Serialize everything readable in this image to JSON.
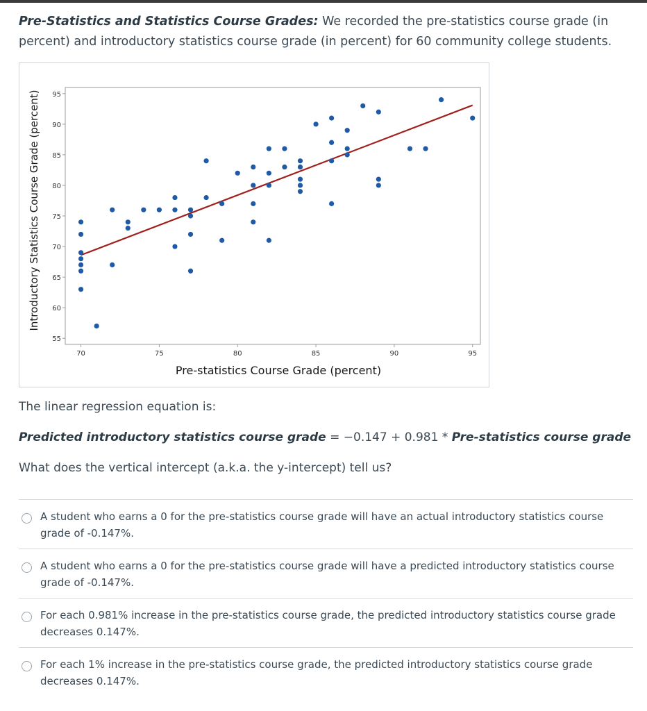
{
  "intro": {
    "title": "Pre-Statistics and Statistics Course Grades:",
    "text": " We recorded the pre-statistics course grade (in percent) and introductory statistics course grade (in percent) for 60 community college students."
  },
  "chart_data": {
    "type": "scatter",
    "xlabel": "Pre-statistics Course Grade (percent)",
    "ylabel": "Introductory Statistics Course Grade (percent)",
    "xlim": [
      69,
      95.5
    ],
    "ylim": [
      54,
      96
    ],
    "xticks": [
      70,
      75,
      80,
      85,
      90,
      95
    ],
    "yticks": [
      55,
      60,
      65,
      70,
      75,
      80,
      85,
      90,
      95
    ],
    "point_color": "#1f5aa6",
    "line_color": "#a0201c",
    "regression_line": {
      "x": [
        70,
        95
      ],
      "y": [
        68.6,
        93.1
      ]
    },
    "points": [
      [
        70,
        74
      ],
      [
        70,
        72
      ],
      [
        70,
        69
      ],
      [
        70,
        68
      ],
      [
        70,
        67
      ],
      [
        70,
        66
      ],
      [
        70,
        63
      ],
      [
        71,
        57
      ],
      [
        72,
        76
      ],
      [
        72,
        67
      ],
      [
        73,
        74
      ],
      [
        73,
        73
      ],
      [
        74,
        76
      ],
      [
        75,
        76
      ],
      [
        76,
        78
      ],
      [
        76,
        76
      ],
      [
        76,
        70
      ],
      [
        77,
        76
      ],
      [
        77,
        75
      ],
      [
        77,
        72
      ],
      [
        77,
        66
      ],
      [
        78,
        84
      ],
      [
        78,
        78
      ],
      [
        79,
        77
      ],
      [
        79,
        71
      ],
      [
        80,
        82
      ],
      [
        81,
        83
      ],
      [
        81,
        80
      ],
      [
        81,
        77
      ],
      [
        81,
        74
      ],
      [
        82,
        86
      ],
      [
        82,
        82
      ],
      [
        82,
        80
      ],
      [
        82,
        71
      ],
      [
        83,
        86
      ],
      [
        83,
        83
      ],
      [
        84,
        84
      ],
      [
        84,
        83
      ],
      [
        84,
        81
      ],
      [
        84,
        80
      ],
      [
        84,
        79
      ],
      [
        85,
        90
      ],
      [
        86,
        91
      ],
      [
        86,
        87
      ],
      [
        86,
        84
      ],
      [
        86,
        77
      ],
      [
        87,
        89
      ],
      [
        87,
        86
      ],
      [
        87,
        85
      ],
      [
        88,
        93
      ],
      [
        89,
        92
      ],
      [
        89,
        81
      ],
      [
        89,
        80
      ],
      [
        91,
        86
      ],
      [
        92,
        86
      ],
      [
        93,
        94
      ],
      [
        95,
        91
      ]
    ]
  },
  "stem": "The linear regression equation is:",
  "equation": {
    "lhs": "Predicted introductory statistics course grade",
    "middle": " = −0.147 + 0.981 * ",
    "rhs": "Pre-statistics course grade"
  },
  "question": "What does the vertical intercept (a.k.a. the y-intercept) tell us?",
  "answers": [
    "A student who earns a 0 for the pre-statistics course grade will have an actual introductory statistics course grade of -0.147%.",
    "A student who earns a 0 for the pre-statistics course grade will have a predicted introductory statistics course grade of -0.147%.",
    "For each 0.981% increase in the pre-statistics course grade, the predicted introductory statistics course grade decreases 0.147%.",
    "For each 1% increase in the pre-statistics course grade, the predicted introductory statistics course grade decreases 0.147%."
  ]
}
